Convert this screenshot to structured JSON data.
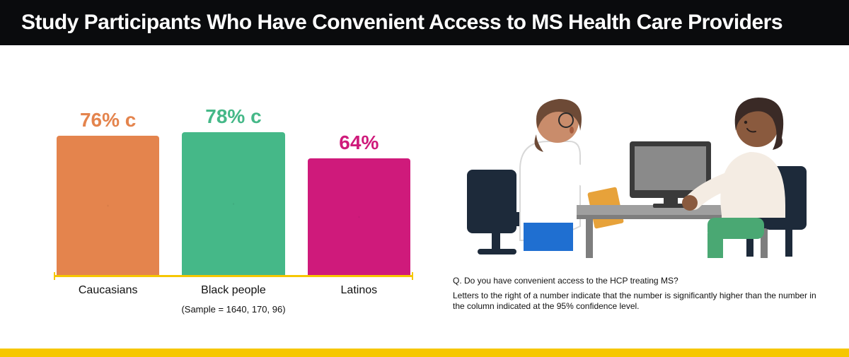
{
  "title": {
    "text": "Study Participants Who Have Convenient Access to MS Health Care Providers",
    "color": "#ffffff",
    "background": "#0a0b0d",
    "fontsize": 30
  },
  "chart": {
    "type": "bar",
    "ylim": [
      0,
      100
    ],
    "axis_color": "#f6c700",
    "bar_width": 1.0,
    "label_fontsize": 28,
    "catlabel_fontsize": 16,
    "catlabel_color": "#111111",
    "sample_note": "(Sample = 1640, 170, 96)",
    "sample_fontsize": 13,
    "sample_color": "#111111",
    "bars": [
      {
        "category": "Caucasians",
        "value": 76,
        "suffix": " c",
        "display": "76% c",
        "color": "#e4844d",
        "label_color": "#e4844d"
      },
      {
        "category": "Black people",
        "value": 78,
        "suffix": " c",
        "display": "78% c",
        "color": "#45b888",
        "label_color": "#45b888"
      },
      {
        "category": "Latinos",
        "value": 64,
        "suffix": "",
        "display": "64%",
        "color": "#cf1a7b",
        "label_color": "#cf1a7b"
      }
    ]
  },
  "illustration": {
    "desk_color": "#9f9f9f",
    "desk_edge": "#7e7e7e",
    "monitor_frame": "#3a3a3a",
    "monitor_screen": "#8a8a8a",
    "chair_color": "#1d2a3a",
    "doctor": {
      "coat": "#ffffff",
      "hair": "#6d4a36",
      "skin": "#c98c6b",
      "pants": "#1f6fd1",
      "folder": "#e7a23a"
    },
    "patient": {
      "top": "#f4ece3",
      "hair": "#3a2a26",
      "skin": "#8a5a3e",
      "pants": "#4aa873"
    }
  },
  "footnotes": {
    "q": "Q. Do you have convenient access to the HCP treating MS?",
    "sig": "Letters to the right of a number indicate that the number is significantly higher than the number in the column indicated at the 95% confidence level.",
    "color": "#111111",
    "fontsize": 12
  },
  "strip_color": "#f6c700"
}
